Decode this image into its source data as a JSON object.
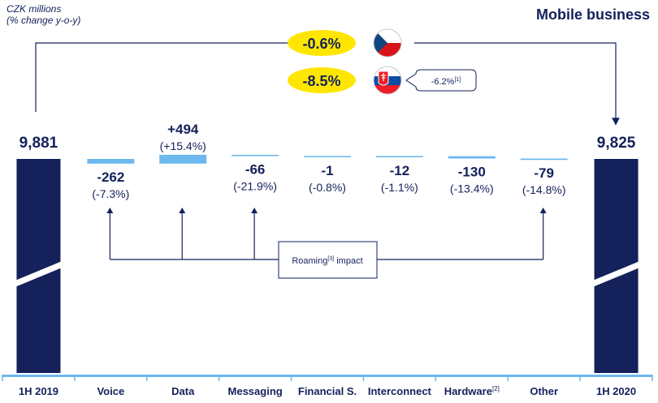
{
  "units_line1": "CZK millions",
  "units_line2": "(% change y-o-y)",
  "title": "Mobile business",
  "country_changes": [
    {
      "label": "-0.6%",
      "flag_icon": "czech-flag-icon"
    },
    {
      "label": "-8.5%",
      "flag_icon": "slovak-flag-icon",
      "note": "-6.2%",
      "note_sup": "[1]"
    }
  ],
  "roaming": {
    "label": "Roaming",
    "sup": "[3]",
    "suffix": " impact"
  },
  "colors": {
    "navy": "#14215a",
    "bar": "#6cb8ef",
    "accent": "#ffe600"
  },
  "chart_data": {
    "type": "bar",
    "subtype": "waterfall",
    "categories": [
      "1H 2019",
      "Voice",
      "Data",
      "Messaging",
      "Financial S.",
      "Interconnect",
      "Hardware",
      "Other",
      "1H 2020"
    ],
    "category_sups": [
      "",
      "",
      "",
      "",
      "",
      "",
      "[2]",
      "",
      ""
    ],
    "values": [
      9881,
      -262,
      494,
      -66,
      -1,
      -12,
      -130,
      -79,
      9825
    ],
    "value_labels": [
      "9,881",
      "-262",
      "+494",
      "-66",
      "-1",
      "-12",
      "-130",
      "-79",
      "9,825"
    ],
    "pct_labels": [
      "",
      "(-7.3%)",
      "(+15.4%)",
      "(-21.9%)",
      "(-0.8%)",
      "(-1.1%)",
      "(-13.4%)",
      "(-14.8%)",
      ""
    ],
    "kinds": [
      "total",
      "delta",
      "delta",
      "delta",
      "delta",
      "delta",
      "delta",
      "delta",
      "total"
    ],
    "axis_break": true,
    "roaming_impact_categories": [
      "Voice",
      "Data",
      "Messaging",
      "Other"
    ]
  }
}
